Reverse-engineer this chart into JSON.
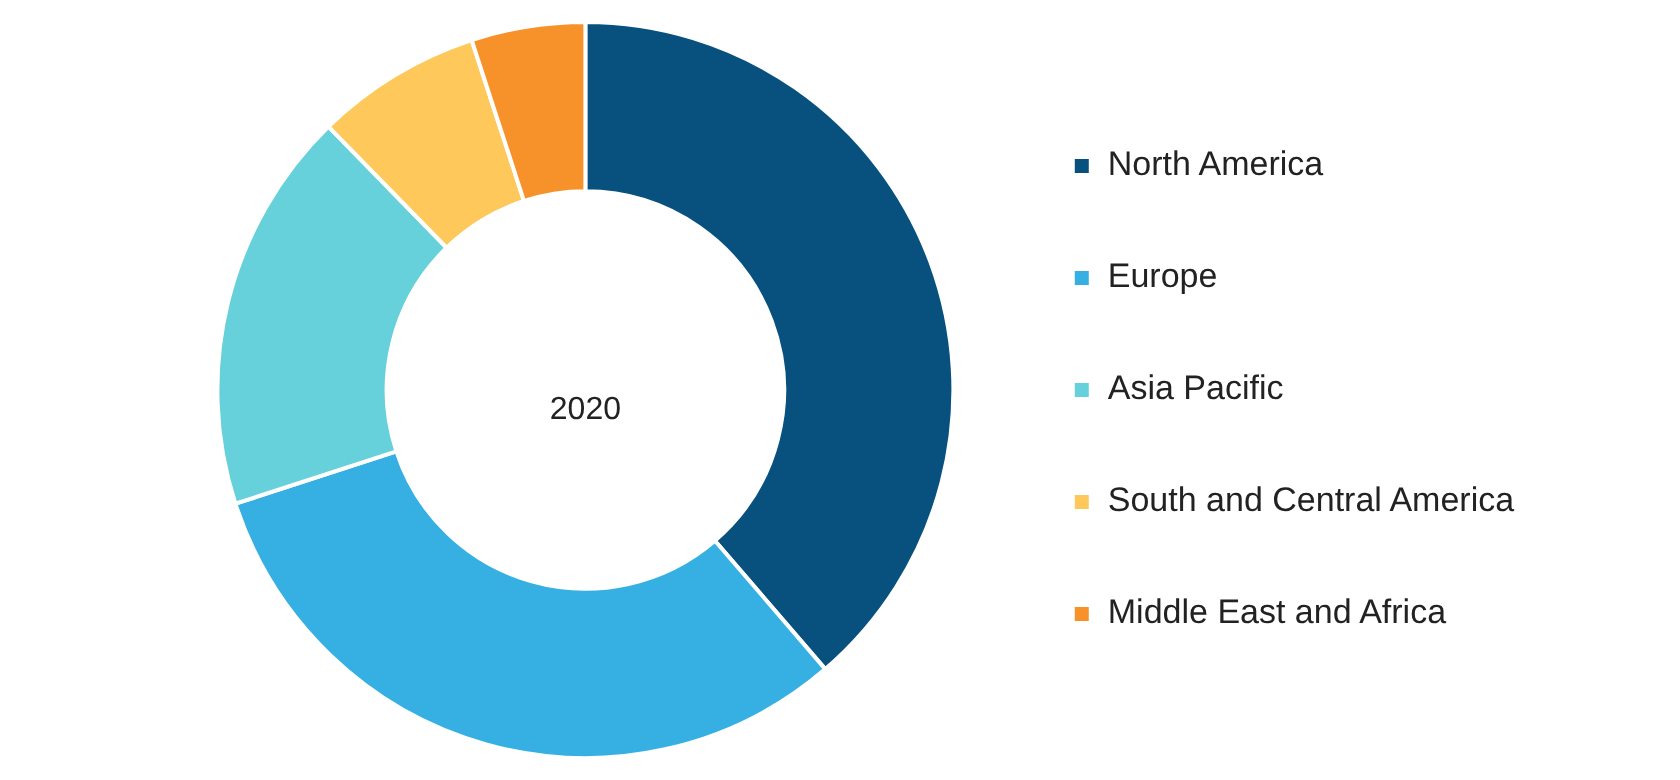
{
  "chart_data": {
    "type": "donut",
    "categories": [
      "North America",
      "Europe",
      "Asia Pacific",
      "South and Central America",
      "Middle East and Africa"
    ],
    "values": [
      38.7,
      31.3,
      17.7,
      7.3,
      5.0
    ],
    "colors": [
      "#08517e",
      "#36b0e2",
      "#66d1da",
      "#fec85b",
      "#f7922b"
    ],
    "annotations": [
      "2020"
    ],
    "legend": "right"
  }
}
